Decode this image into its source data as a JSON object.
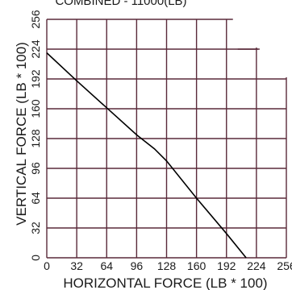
{
  "chart_data": {
    "type": "line",
    "title": "COMBINED - 11000(LB)",
    "xlabel": "HORIZONTAL FORCE (LB * 100)",
    "ylabel": "VERTICAL FORCE (LB * 100)",
    "xlim": [
      0,
      256
    ],
    "ylim": [
      0,
      256
    ],
    "x_ticks": [
      "0",
      "32",
      "64",
      "96",
      "128",
      "160",
      "192",
      "224",
      "256"
    ],
    "y_ticks": [
      "0",
      "32",
      "64",
      "96",
      "128",
      "160",
      "192",
      "224",
      "256"
    ],
    "grid": true,
    "grid_color": "#5a2a3a",
    "line_color": "#000000",
    "series": [
      {
        "points": [
          {
            "x": 0,
            "y": 220
          },
          {
            "x": 32,
            "y": 190
          },
          {
            "x": 64,
            "y": 161
          },
          {
            "x": 96,
            "y": 132
          },
          {
            "x": 115,
            "y": 117
          },
          {
            "x": 128,
            "y": 104
          },
          {
            "x": 160,
            "y": 64
          },
          {
            "x": 192,
            "y": 26
          },
          {
            "x": 213,
            "y": 0
          }
        ]
      }
    ]
  }
}
